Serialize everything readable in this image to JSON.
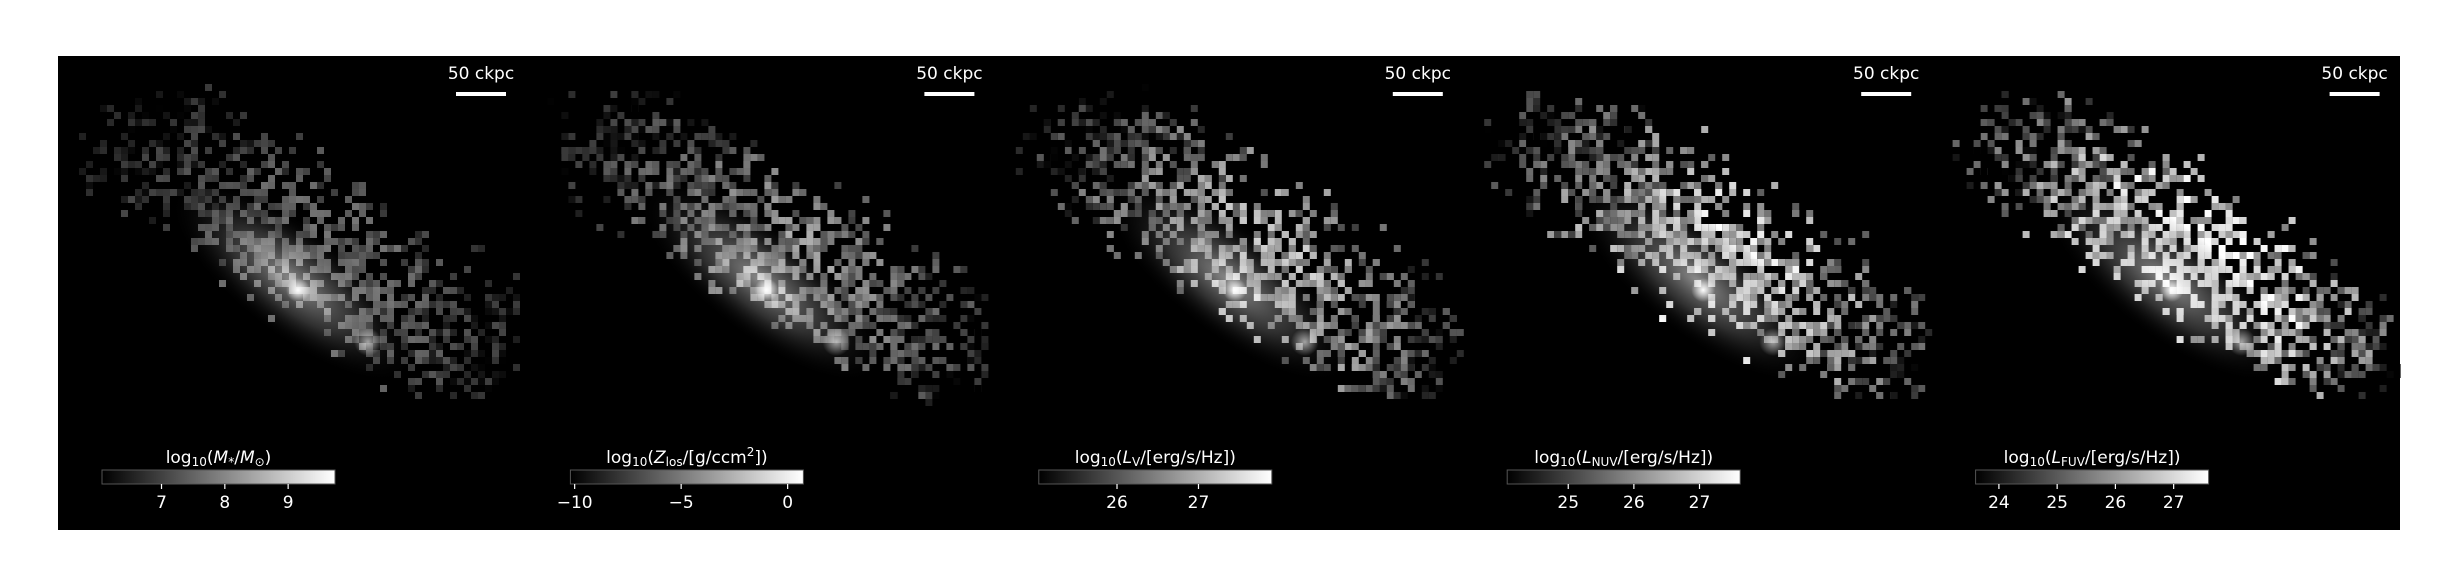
{
  "chart_data": [
    {
      "type": "image",
      "scale_bar": "50 ckpc",
      "colorbar": {
        "label": [
          {
            "text": "log"
          },
          {
            "text": "10",
            "style": "sub"
          },
          {
            "text": "("
          },
          {
            "text": "M",
            "style": "italic"
          },
          {
            "text": "*",
            "style": "sub"
          },
          {
            "text": "/"
          },
          {
            "text": "M",
            "style": "italic"
          },
          {
            "text": "⊙",
            "style": "sub"
          },
          {
            "text": ")"
          }
        ],
        "lim": [
          6.06,
          9.74
        ],
        "ticks": [
          7,
          8,
          9
        ]
      }
    },
    {
      "type": "image",
      "scale_bar": "50 ckpc",
      "colorbar": {
        "label": [
          {
            "text": "log"
          },
          {
            "text": "10",
            "style": "sub"
          },
          {
            "text": "("
          },
          {
            "text": "Z",
            "style": "italic"
          },
          {
            "text": "los",
            "style": "sub"
          },
          {
            "text": "/[g/ccm"
          },
          {
            "text": "2",
            "style": "sup"
          },
          {
            "text": "])"
          }
        ],
        "lim": [
          -10.2,
          0.74
        ],
        "ticks": [
          {
            "value": -10,
            "label": "−10"
          },
          {
            "value": -5,
            "label": "−5"
          },
          0
        ]
      }
    },
    {
      "type": "image",
      "scale_bar": "50 ckpc",
      "colorbar": {
        "label": [
          {
            "text": "log"
          },
          {
            "text": "10",
            "style": "sub"
          },
          {
            "text": "("
          },
          {
            "text": "L",
            "style": "italic"
          },
          {
            "text": "V",
            "style": "sub"
          },
          {
            "text": "/[erg/s/Hz])"
          }
        ],
        "lim": [
          25.04,
          27.9
        ],
        "ticks": [
          26,
          27
        ]
      }
    },
    {
      "type": "image",
      "scale_bar": "50 ckpc",
      "colorbar": {
        "label": [
          {
            "text": "log"
          },
          {
            "text": "10",
            "style": "sub"
          },
          {
            "text": "("
          },
          {
            "text": "L",
            "style": "italic"
          },
          {
            "text": "NUV",
            "style": "sub"
          },
          {
            "text": "/[erg/s/Hz])"
          }
        ],
        "lim": [
          24.07,
          27.62
        ],
        "ticks": [
          25,
          26,
          27
        ]
      }
    },
    {
      "type": "image",
      "scale_bar": "50 ckpc",
      "colorbar": {
        "label": [
          {
            "text": "log"
          },
          {
            "text": "10",
            "style": "sub"
          },
          {
            "text": "("
          },
          {
            "text": "L",
            "style": "italic"
          },
          {
            "text": "FUV",
            "style": "sub"
          },
          {
            "text": "/[erg/s/Hz])"
          }
        ],
        "lim": [
          23.6,
          27.6
        ],
        "ticks": [
          24,
          25,
          26,
          27
        ]
      }
    }
  ]
}
